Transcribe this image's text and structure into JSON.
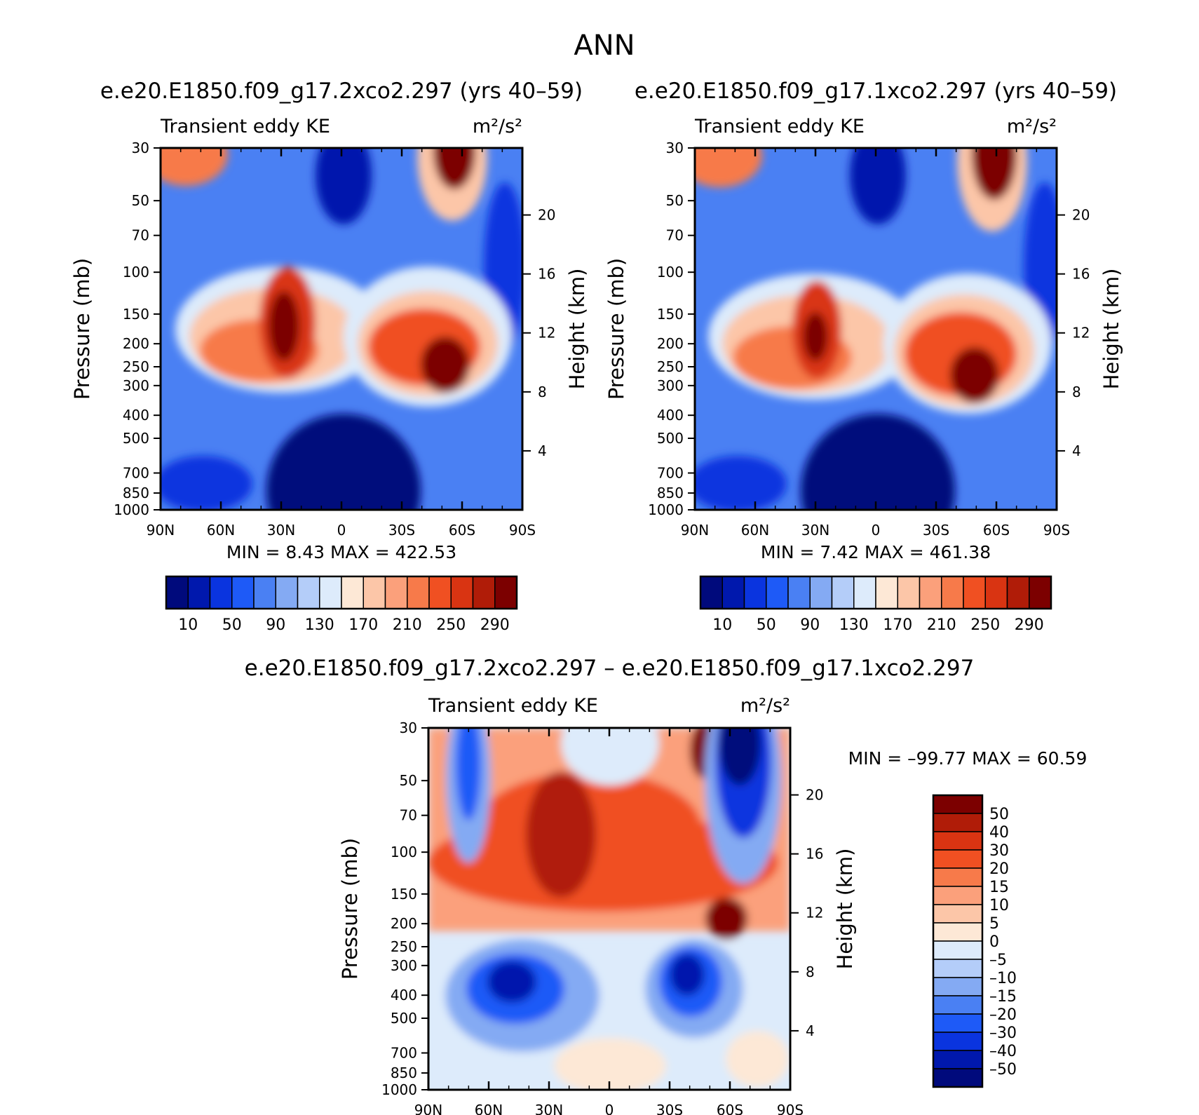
{
  "page": {
    "title": "ANN"
  },
  "chart_data": [
    {
      "type": "heatmap",
      "id": "left",
      "case_title": "e.e20.E1850.f09_g17.2xco2.297 (yrs 40–59)",
      "left_label": "Transient eddy KE",
      "units": "m²/s²",
      "ylabel": "Pressure (mb)",
      "ylabel_right": "Height (km)",
      "x_ticks": [
        "90N",
        "60N",
        "30N",
        "0",
        "30S",
        "60S",
        "90S"
      ],
      "p_ticks": [
        "30",
        "50",
        "70",
        "100",
        "150",
        "200",
        "250",
        "300",
        "400",
        "500",
        "700",
        "850",
        "1000"
      ],
      "h_ticks": [
        "20",
        "16",
        "12",
        "8",
        "4"
      ],
      "stats": "MIN =    8.43   MAX = 422.53",
      "cbar_labels": [
        "10",
        "50",
        "90",
        "130",
        "170",
        "210",
        "250",
        "290"
      ],
      "value_range": [
        8.43,
        422.53
      ]
    },
    {
      "type": "heatmap",
      "id": "right",
      "case_title": "e.e20.E1850.f09_g17.1xco2.297 (yrs 40–59)",
      "left_label": "Transient eddy KE",
      "units": "m²/s²",
      "ylabel": "Pressure (mb)",
      "ylabel_right": "Height (km)",
      "x_ticks": [
        "90N",
        "60N",
        "30N",
        "0",
        "30S",
        "60S",
        "90S"
      ],
      "p_ticks": [
        "30",
        "50",
        "70",
        "100",
        "150",
        "200",
        "250",
        "300",
        "400",
        "500",
        "700",
        "850",
        "1000"
      ],
      "h_ticks": [
        "20",
        "16",
        "12",
        "8",
        "4"
      ],
      "stats": "MIN =    7.42   MAX = 461.38",
      "cbar_labels": [
        "10",
        "50",
        "90",
        "130",
        "170",
        "210",
        "250",
        "290"
      ],
      "value_range": [
        7.42,
        461.38
      ]
    },
    {
      "type": "heatmap",
      "id": "diff",
      "case_title": "e.e20.E1850.f09_g17.2xco2.297 – e.e20.E1850.f09_g17.1xco2.297",
      "left_label": "Transient eddy KE",
      "units": "m²/s²",
      "ylabel": "Pressure (mb)",
      "ylabel_right": "Height (km)",
      "x_ticks": [
        "90N",
        "60N",
        "30N",
        "0",
        "30S",
        "60S",
        "90S"
      ],
      "p_ticks": [
        "30",
        "50",
        "70",
        "100",
        "150",
        "200",
        "250",
        "300",
        "400",
        "500",
        "700",
        "850",
        "1000"
      ],
      "h_ticks": [
        "20",
        "16",
        "12",
        "8",
        "4"
      ],
      "stats": "MIN = –99.77   MAX =   60.59",
      "cbar_labels": [
        "50",
        "40",
        "30",
        "20",
        "15",
        "10",
        "5",
        "0",
        "–5",
        "–10",
        "–15",
        "–20",
        "–30",
        "–40",
        "–50"
      ],
      "value_range": [
        -99.77,
        60.59
      ]
    }
  ],
  "colors": {
    "seq": [
      "#000a7c",
      "#0018ad",
      "#0a34df",
      "#1e5af7",
      "#4a80f3",
      "#84aaf3",
      "#b4cdf9",
      "#ddebfb",
      "#fde8d6",
      "#fcc6a8",
      "#fba07b",
      "#f77a4a",
      "#f05022",
      "#d93412",
      "#b01c08",
      "#7c0000"
    ],
    "diff": [
      "#000a7c",
      "#0018ad",
      "#0a34df",
      "#1e5af7",
      "#4a80f3",
      "#84aaf3",
      "#b4cdf9",
      "#ddebfb",
      "#fde8d6",
      "#fcc6a8",
      "#fba07b",
      "#f77a4a",
      "#f05022",
      "#d93412",
      "#b01c08",
      "#7c0000"
    ]
  }
}
